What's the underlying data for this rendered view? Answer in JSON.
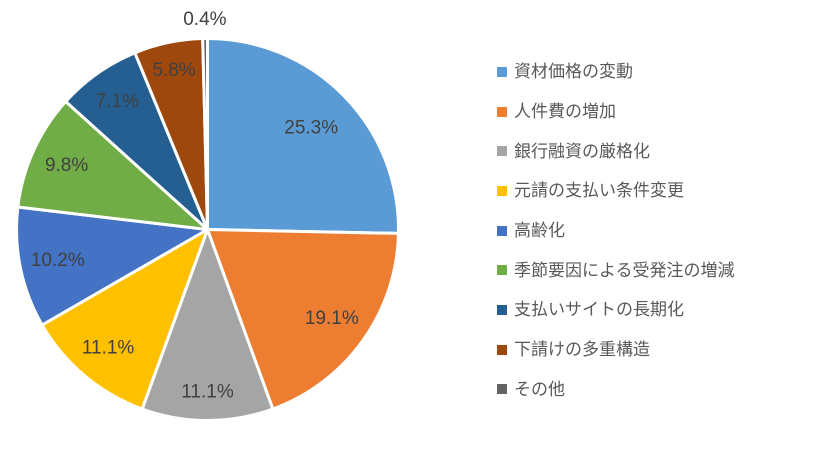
{
  "chart_data": {
    "type": "pie",
    "title": "",
    "legend_position": "right",
    "direction": "clockwise",
    "start_angle_deg": 0,
    "background": "#FFFFFF",
    "label_color": "#404040",
    "legend_text_color": "#595959",
    "slice_border_color": "#FFFFFF",
    "slices": [
      {
        "label": "資材価格の変動",
        "value": 25.3,
        "display": "25.3%",
        "color": "#5B9BD5",
        "label_frac": 0.76,
        "label_outside": false
      },
      {
        "label": "人件費の増加",
        "value": 19.1,
        "display": "19.1%",
        "color": "#ED7D31",
        "label_frac": 0.8,
        "label_outside": false
      },
      {
        "label": "銀行融資の厳格化",
        "value": 11.1,
        "display": "11.1%",
        "color": "#A5A5A5",
        "label_frac": 0.85,
        "label_outside": false
      },
      {
        "label": "元請の支払い条件変更",
        "value": 11.1,
        "display": "11.1%",
        "color": "#FFC000",
        "label_frac": 0.81,
        "label_outside": false
      },
      {
        "label": "高齢化",
        "value": 10.2,
        "display": "10.2%",
        "color": "#4472C4",
        "label_frac": 0.8,
        "label_outside": false
      },
      {
        "label": "季節要因による受発注の増減",
        "value": 9.8,
        "display": "9.8%",
        "color": "#70AD47",
        "label_frac": 0.81,
        "label_outside": false
      },
      {
        "label": "支払いサイトの長期化",
        "value": 7.1,
        "display": "7.1%",
        "color": "#255E91",
        "label_frac": 0.82,
        "label_outside": false
      },
      {
        "label": "下請けの多重構造",
        "value": 5.8,
        "display": "5.8%",
        "color": "#9E480E",
        "label_frac": 0.85,
        "label_outside": false
      },
      {
        "label": "その他",
        "value": 0.4,
        "display": "0.4%",
        "color": "#636363",
        "label_frac": 1.1,
        "label_outside": true
      }
    ]
  }
}
